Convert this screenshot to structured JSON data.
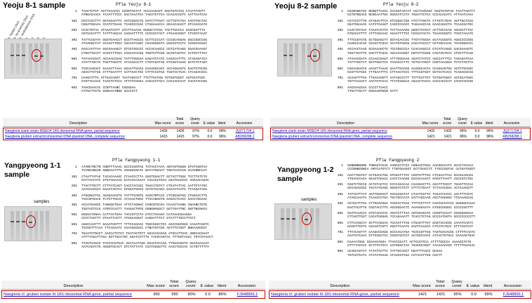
{
  "colors": {
    "highlight": "#c00000",
    "link": "#1a0dab"
  },
  "gel_lane_labels": [
    "N. fowleri DNA",
    "N. lovaniensis DNA",
    "N. australiensis DNA",
    "1",
    "2",
    "3",
    "4"
  ],
  "samples_label": "samples",
  "blast_headers": [
    "Description",
    "Max score",
    "Total score",
    "Query cover",
    "E value",
    "Ident",
    "Accession"
  ],
  "panels": [
    {
      "title": "Yeoju 8-1 sample",
      "seq_title": "Pfla Yeoju 8-1",
      "seq": [
        [
          "1",
          "TAACTCTGT AGTTAAACCC CCGNTAGTAT ACCAAAGAGT GGGTGTGTAG CTAATTAGTT"
        ],
        [
          "",
          "ATNGACAACA TCAATTTCCC GACTAAATCA TAGATCTTCA CCACACACTC AATTAATCAA"
        ],
        [
          "101",
          "GCCTACCTTT GGTAGACTTC AGTCGGGCTG GATCTTTGGT CCTTGTCTGA CAGTTGCTAC"
        ],
        [
          "",
          "CGGATGGAAA CCATCTGAAG TCAGCCCGAC CTAGAAACCA GGAACAGACT GTCAACGATG"
        ],
        [
          "201",
          "CCACTGTAA ATAAATCGTT GTCTTAAAAG GGGGCTATGA TACTTGCCCA GAGCGATTTA"
        ],
        [
          "",
          "CGTGACATTT TATTTAGCAA CAGAATTTTC CCCCGATACT ATGAACGGGT CTCGCTAAAT"
        ],
        [
          "301",
          "TATTCCGATA GGGTGAACCT GCGTTAGCCG GCTTCCCCAT CCCGCAGGAG GGCCGGCCGG"
        ],
        [
          "",
          "ATAAGGCTAT CCCACTTGGA CGCAATCGGC CGAAGGGGTA GGGCGTCCTC CCGGCCGGCC"
        ],
        [
          "401",
          "GACCAATTAA GGCGAAAGCT GTCGTGGCCC ACCACAAGCC CGTCATCAGG GGACGAAAGT"
        ],
        [
          "",
          "CTGGTTGATT CCGCTTTCGA CAGCACCCGG TGGTGTTCGG GCAGTAGTCC CCTGCTTTCA"
        ],
        [
          "501",
          "TATAAACGAT ACCAACCGAG TATTTGGGAA GAGATCTATC CAGCCATTTC CTAGAGATCA"
        ],
        [
          "",
          "ATATTTGCTA TGGTTGGCTC ATAAACCCTT CTGTCGATAG GTCGGTAAAG GATCTCTAGT"
        ],
        [
          "601",
          "TCGCAAGACC GAAACTTAAA GGAATTGACG GAAAGGCACC ACCAGGAGTG GAGTCTGCGG"
        ],
        [
          "",
          "AGCGTTCTGG CTTTGAATTT CCTTAACTGC CTTTCCGTGG TGGTCCTCAC CTCAGACGCC"
        ],
        [
          "701",
          "CAAGATTTG ATTGACAGGT TAATAGCCCT TTCTTGATGN TGTGGTGGGT AGTGCATGGC"
        ],
        [
          "",
          "GTGTTCAAAC TAACTGTCCA ATTATCGGGA AAGAACTACA CACCACCCAT CACGTACCGG"
        ],
        [
          "801",
          "TAACGAACAC CCNTTAANC CGGGGAA"
        ],
        [
          "",
          "ATTGCTTGTG GGNAAATNNG GCCCCTT"
        ]
      ],
      "blast_rows": [
        {
          "desc": "Naegleria clarki strain MSED4 18S ribosomal RNA gene, partial sequence",
          "max": "1426",
          "total": "1426",
          "cover": "97%",
          "e": "0.0",
          "ident": "99%",
          "acc": "JQ271704.1"
        },
        {
          "desc": "Naegleria gruberi extrachromosomal rDNA plasmid DNA, complete sequence",
          "max": "1415",
          "total": "1415",
          "cover": "97%",
          "e": "0.0",
          "ident": "96%",
          "acc": "AB298288.1"
        }
      ]
    },
    {
      "title": "Yeoju 8-2 sample",
      "seq_title": "Pfla Yeoju 8-2",
      "seq": [
        [
          "1",
          "CGANANCTGC NGNGTTAACC CCCGGTAGTAT ACCTAAGAGT GGGTGTGTAG TAATTAGTTT"
        ],
        [
          "",
          "GCTNTNGACG NCNCAATTGC GGGCATCATA TGGATTCTCA CCCACACATC ATTAATCAAA"
        ],
        [
          "101",
          "CCTACCTTTG GTAGACTTCA GTCGGGCTGG ATCTTTGGTC CTTGTCTGAC AGTTGCTACG"
        ],
        [
          "",
          "GGATGGAAAC CATCTGAAGT CAGCCCGACC TAGAAACCAG GAACAGACTG TCAACGATGC"
        ],
        [
          "201",
          "CAACTGTAAA TAAATCGTTG TCTTAAAAGG GGGCTATGAT ACTTGCCCAG AGCGATTTAC"
        ],
        [
          "",
          "GTGACATTTT ATTTAGCAAC AGAATTTTCC CCCGATACTA TGAACGGGTC TCGCTAAATG"
        ],
        [
          "301",
          "TTTCGGTGTG GCTGGAGCTT GGTACACCGC TTGTATGGGA GCATCGGGTG AGGCCCCGGG"
        ],
        [
          "",
          "AAAGCCACAC CGACCTCGAA CCATGTGGCG AACATACCCT CGTAGCCCAC TCCGGGGCCC"
        ],
        [
          "401",
          "ACCAACTAAG GCGAAAGCTG TCGTGGCCCA CCACAAGCCC GTCATCAGGG GACGAAAGTC"
        ],
        [
          "",
          "TGGTTGATTC CGCTTTCGAC AGCACCGGGT GGTGTTCGGG CAGTAGTCCC CTGCTTTCAG"
        ],
        [
          "501",
          "ATAAACGATA CCAACCGAGT ATTTGGGAAG AGATCTATCC AGCCATTTCC TAGAGATCAA"
        ],
        [
          "",
          "TATTTGCTAT GGTTGGCTCA TAAACCCTTC TCTGATAGGT CGGTAAAGGA TCTCTAGTTA"
        ],
        [
          "601",
          "CGCAAGACCG AAACTTAAAG GAATTGACGG AAAGGCACCA CCAGGAGTGG AGTCTGCGGC"
        ],
        [
          "",
          "GCGTTCTGGC TTTGAATTTC CTTAACTGCC TTTCCGTGGT GGTCCTCACC TCAGACGCCG"
        ],
        [
          "701",
          "ACAAGTTTGA TTGACAGGTT AATAGCCCTT TCTTGATTGT TGTGGTGGGT AGTGCATGGC"
        ],
        [
          "",
          "TGTTCAAACT AACTGTCCAA TTATCGGGAA AGAACTAACA CACCACCCAT CACGTACCGG"
        ],
        [
          "801",
          "AACGAACGAA CCCCTTAACC"
        ],
        [
          "",
          "TTGCTTGCTT GGGAANTGGN CCTT"
        ]
      ],
      "blast_rows": [
        {
          "desc": "Naegleria clarki strain MSED4 18S ribosomal RNA gene, partial sequence",
          "max": "1432",
          "total": "1432",
          "cover": "96%",
          "e": "0.0",
          "ident": "99%",
          "acc": "JQ271704.1"
        },
        {
          "desc": "Naegleria gruberi extrachromosomal rDNA plasmid DNA, complete sequence",
          "max": "1421",
          "total": "1421",
          "cover": "96%",
          "e": "0.0",
          "ident": "96%",
          "acc": "AB298288.1"
        }
      ]
    },
    {
      "title": "Yangpyeong 1-1 sample",
      "seq_title": "Pfla Yangpyeong 1-1",
      "seq": [
        [
          "1",
          "ATANCTNCTN CNNTTTAAAC GCCCCGNTAG TATACCTAAA ANTAGTGGGN GTGTAGNTAA"
        ],
        [
          "",
          "TATNGANGAN GNNAAATTTG CGGGGCNATC NATATGGAAT TNATCACCCN CCACNNCCAT"
        ],
        [
          "101",
          "CTAATTATAG TACACAAAGC CTAACCCTTA GGGTGGACTT GCTACTTGGG TCCTTGTCTG"
        ],
        [
          "",
          "GATTAATATC GTGTAGAAAG GATAACCGAAT CCCACCTGAA CGATGAACCC AGGAACAGAC"
        ],
        [
          "201",
          "TTACTTGCTT CTTTATCAGT CACCTACCGC TGACATGTCT CTGATATTAC AATTCTATGC"
        ],
        [
          "",
          "AATGAACGAA GAAATAGTCA GTGGATGGCG ACTGTACAGA GACTATAATG TTAAGATACG"
        ],
        [
          "301",
          "ATGGNACTGC AGAGAACGTG TATTTGANTG AAGGTNTCAC CTCGGAGTGG CTGGACCTTG"
        ],
        [
          "",
          "TACCNTGACG TCTCTTGCAC ATAAACTNAC TTCCANAGTG GAGCCTCACC GACCTGGAAC"
        ],
        [
          "401",
          "ACCATGAGGC TANAGGTGAA ATTCTAGNAC CCNCNTCCGA CCAACTAANG CNAANCTGTG"
        ],
        [
          "",
          "TGGTACTCCG ATNTCCACTT TAAGACTNTG GGNGNAGGCT GGTTGATTNC GNTTNCNACA"
        ],
        [
          "501",
          "GGGGATCNAA CATTAATGAA TACCGTCCTA GTCCTAAAGA CATAAACGAAGGA"
        ],
        [
          "",
          "CCCCTAGTTT GTAATTACTT ATGGCAGGAT CAGGATTTCT GTATTTTGCCTTCCT"
        ],
        [
          "601",
          "AGGCCAATTT GAAATGGTTT TTTCCAGAAC TGGCGGCCTCC AGCCGGCGGG CAAATCGGTC"
        ],
        [
          "",
          "TCCGGTTTAAA TTCAGAATC AAAAGGGGCC CTNATGTCGG AGTTTGTGGT NNGAAGGGCT"
        ],
        [
          "701",
          "TGAATCTNACT AACCATCTGT TGATAGTGTT GGACACCGAG ATGCATTGAC ANGCACGAAT"
        ],
        [
          "",
          "ATTTTAGATTTGA GGTTGCCTGC GGATCCTTTG TACGCAGTAA TTTGGTAACC TGTCGTAACT"
        ],
        [
          "801",
          "TTAGTCAGAC TCCCACGTGAC AGATAATAGG GGACCCCAAG TTGGACGGTG GGACAAAAAT"
        ],
        [
          "",
          "AATCAGTCTG AGGGTGCACT GTCTATTATC CCCTGGGGTTC AACCTGCCAC CCTGTTTTTA"
        ]
      ],
      "blast_rows": [
        {
          "desc": "Naegleria cf. gruberi isolate 6t 18S ribosomal RNA gene, partial sequence",
          "max": "950",
          "total": "950",
          "cover": "90%",
          "e": "0.0",
          "ident": "86%",
          "acc": "FJ948856.1"
        }
      ]
    },
    {
      "title": "Yangpyeong 1-2 sample",
      "seq_title": "Pfla Yangpyeong 2",
      "seq": [
        [
          "1",
          "GGNNNNGNNG TNNAGTACAG AANACCTCCA CGNAACTGGA AACGGCCATG GCACTACCCA"
        ],
        [
          "",
          "CCCNNNCNNCA ANTCATGTCT TTNTGGAGGT GCTTGACCTT TTGCCGGTAC CGTGATGGGT"
        ],
        [
          "101",
          "AACTTGGTGT CCTGACCTGG GTGGATTTCC CGGTGTTTGA CTCGAATTAA GCCGCAGACG"
        ],
        [
          "",
          "TTGAACCACA GGACTGGACC CACCTAAAGG GCCACAAACT GAGCTTAATT CGCCGTCTGC"
        ],
        [
          "201",
          "CGGTCTGCCG ACTATACTCC CCCCAGACAA CAAAGACTTA AGATTTGCCT TGAGTTCCAA"
        ],
        [
          "",
          "GCCAGACGGC TGATATGAGG GGGGTCTGTT GTTTCTGAAT TCTAAACGGA ACTCAAGGTT"
        ],
        [
          "301",
          "TATCGTTTAT AGTTGGGACT ACGACGGTAT CTAATCGTTC TCGATCCCCC AACTTTCGTC"
        ],
        [
          "",
          "ATAGCAAATA TCAACCCTGA TGCTGCCATA GATTAGCAAG AGCTAGGGGG TTGAAAGCAG"
        ],
        [
          "401",
          "ACTGCTTTGA CTTGGACGGA TCGCCCTGAG TTTTCCTTAT CACCGCCCCCG GGGGGCCAAA"
        ],
        [
          "",
          "GACTACATTG CGGTACCTTG AGCGGGACTC AAAAGGAATA GTGGCGGGGC CCCCCGGTTT"
        ],
        [
          "501",
          "GAATCAACCA GTGTACCCCC AGGTCTTTAA AGTGGAGATC CGGGTACCAT CGGGGGGGAA"
        ],
        [
          "",
          "CTTAGTTGGT CACATGGGGG TCCAGAAATT TCACCTCTAG GCCCATGGTA GCCCCCCCCTT"
        ],
        [
          "601",
          "CTTCAAGCAT GCTTCAGCAA TCCAATTTAG CTGAGTTTGT GAGTACACGG CAAATCAGTA"
        ],
        [
          "",
          "GAAGTTCGTA CGAAGTCGTT AGGTTAAATC GACTCAAACA CTCATGTGCC GTTTAGTCAT"
        ],
        [
          "701",
          "TTTACAGTTT CAAGCCGAGG GCCCACATGA TGACCGTTGG TAGTGACACGG CTTTTCACTG"
        ],
        [
          "",
          "AAATGTCAAA GTTCGGCTCC CGGGTGCCCT ACTGGCAACC ATCACTGTGCC GAAAAGTGAC"
        ],
        [
          "801",
          "CAAAATGGG CGAAACAGGA TTACCCGATT ACTCCGTCCA ATTTTGGCCA AAAAGCTGTG"
        ],
        [
          "",
          "GTTTTACCCC GCTTTGTCCT AATGGGCTAA TGAGGCAGGT TAAAAACCGG TTTTTCGACAC"
        ],
        [
          "901",
          "ACAGCAGTAT TATATACTTC TATTGCAGCT GGATTTAACC GCGAA"
        ],
        [
          "",
          "TGTCGTCATA ATATATGAAG ATAACGTCGA CCTAAATTGG CGCTT"
        ]
      ],
      "blast_rows": [
        {
          "desc": "Naegleria cf. gruberi isolate 6t 18S ribosomal RNA gene, partial sequence",
          "max": "1421",
          "total": "1421",
          "cover": "95%",
          "e": "0.0",
          "ident": "99%",
          "acc": "FJ948856.1"
        }
      ]
    }
  ]
}
